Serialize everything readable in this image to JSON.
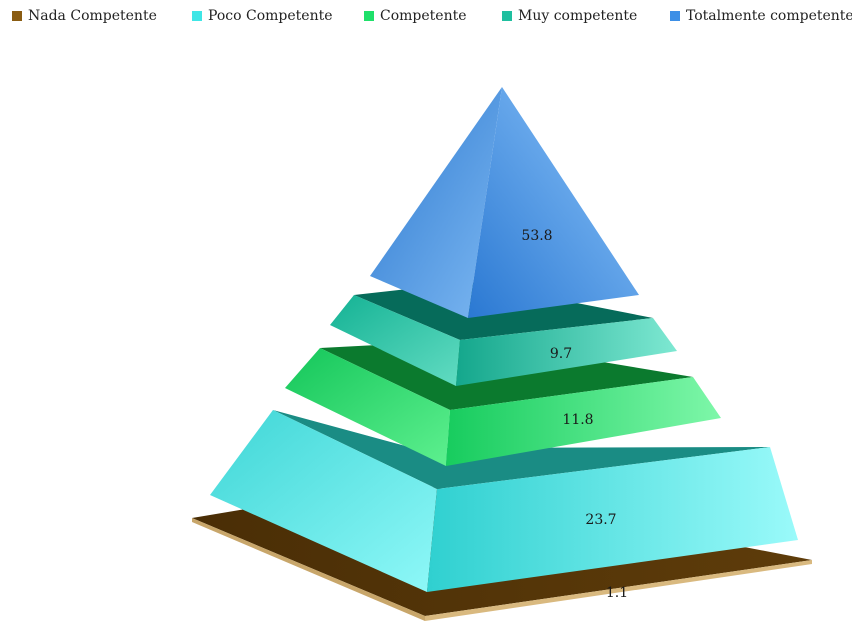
{
  "chart_data": {
    "type": "pyramid",
    "title": "",
    "legend_position": "top",
    "series": [
      {
        "name": "Nada Competente",
        "value": 1.1,
        "label": "1.1",
        "color": "#8a5c12"
      },
      {
        "name": "Poco Competente",
        "value": 23.7,
        "label": "23.7",
        "color": "#3fe6e6"
      },
      {
        "name": "Competente",
        "value": 11.8,
        "label": "11.8",
        "color": "#1fe06a"
      },
      {
        "name": "Muy competente",
        "value": 9.7,
        "label": "9.7",
        "color": "#1fbf9f"
      },
      {
        "name": "Totalmente competente",
        "value": 53.8,
        "label": "53.8",
        "color": "#3d8fe6"
      }
    ]
  }
}
